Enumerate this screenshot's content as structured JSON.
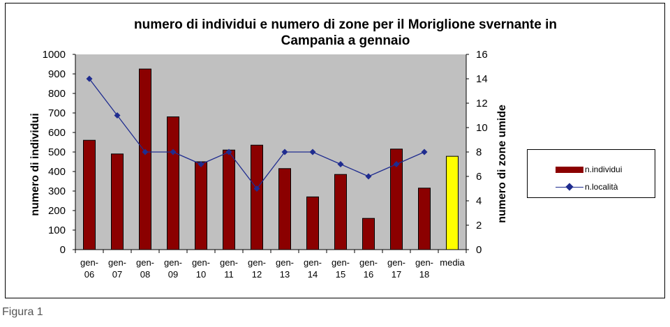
{
  "chart_data": {
    "type": "bar",
    "title_line1": "numero di individui e numero di zone per il Moriglione svernante in",
    "title_line2": "Campania a gennaio",
    "ylabel": "numero di individui",
    "y2label": "numero di zone umide",
    "ylim": [
      0,
      1000
    ],
    "y2lim": [
      0,
      16
    ],
    "yticks": [
      "0",
      "100",
      "200",
      "300",
      "400",
      "500",
      "600",
      "700",
      "800",
      "900",
      "1000"
    ],
    "y2ticks": [
      "0",
      "2",
      "4",
      "6",
      "8",
      "10",
      "12",
      "14",
      "16"
    ],
    "categories": [
      [
        "gen-",
        "06"
      ],
      [
        "gen-",
        "07"
      ],
      [
        "gen-",
        "08"
      ],
      [
        "gen-",
        "09"
      ],
      [
        "gen-",
        "10"
      ],
      [
        "gen-",
        "11"
      ],
      [
        "gen-",
        "12"
      ],
      [
        "gen-",
        "13"
      ],
      [
        "gen-",
        "14"
      ],
      [
        "gen-",
        "15"
      ],
      [
        "gen-",
        "16"
      ],
      [
        "gen-",
        "17"
      ],
      [
        "gen-",
        "18"
      ],
      [
        "media",
        ""
      ]
    ],
    "series": [
      {
        "name": "n.individui",
        "axis": "left",
        "kind": "bar",
        "color": "#8b0000",
        "highlight_last_color": "#ffff00",
        "values": [
          560,
          490,
          925,
          680,
          450,
          510,
          535,
          415,
          270,
          385,
          160,
          515,
          315,
          478
        ]
      },
      {
        "name": "n.località",
        "axis": "right",
        "kind": "line",
        "color": "#1f2c8f",
        "values": [
          14,
          11,
          8,
          8,
          7,
          8,
          5,
          8,
          8,
          7,
          6,
          7,
          8,
          null
        ]
      }
    ],
    "plot_background": "#c0c0c0",
    "grid": false,
    "legend_position": "right"
  },
  "caption": "Figura 1"
}
